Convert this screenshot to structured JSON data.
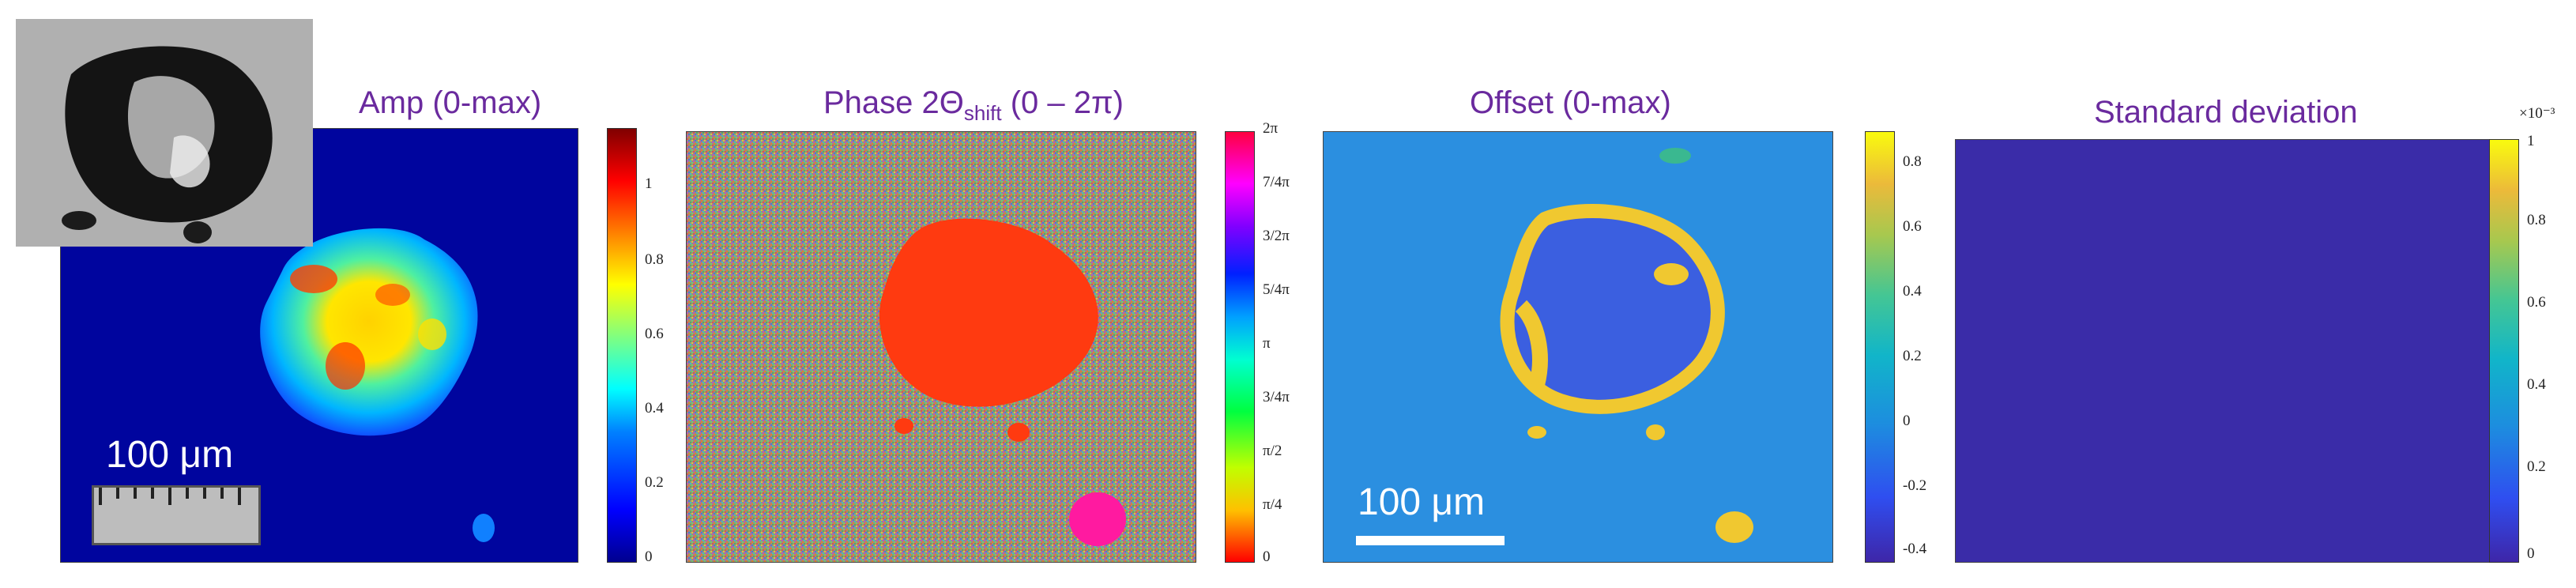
{
  "panels": [
    {
      "id": "amp",
      "title": "Amp (0-max)",
      "colorbar_ticks": [
        "1",
        "0.8",
        "0.6",
        "0.4",
        "0.2",
        "0"
      ],
      "colormap": "jet"
    },
    {
      "id": "phase",
      "title_main": "Phase 2Θ",
      "title_sub": "shift",
      "title_tail": " (0 – 2π)",
      "colorbar_ticks": [
        "2π",
        "7/4π",
        "3/2π",
        "5/4π",
        "π",
        "3/4π",
        "π/2",
        "π/4",
        "0"
      ],
      "colormap": "hsv"
    },
    {
      "id": "offset",
      "title": "Offset (0-max)",
      "colorbar_ticks": [
        "0.8",
        "0.6",
        "0.4",
        "0.2",
        "0",
        "-0.2",
        "-0.4"
      ],
      "colormap": "parula"
    },
    {
      "id": "std",
      "title": "Standard deviation",
      "colorbar_ticks": [
        "1",
        "0.8",
        "0.6",
        "0.4",
        "0.2",
        "0"
      ],
      "colorbar_exponent": "×10⁻³",
      "colormap": "parula"
    }
  ],
  "scale_bars": {
    "amp_label": "100 μm",
    "offset_label": "100 μm"
  },
  "colors": {
    "title": "#6a2a9e",
    "jet_low": "#00008f",
    "parula_mid": "#2b8fe0",
    "parula_low": "#3a2ca8"
  }
}
